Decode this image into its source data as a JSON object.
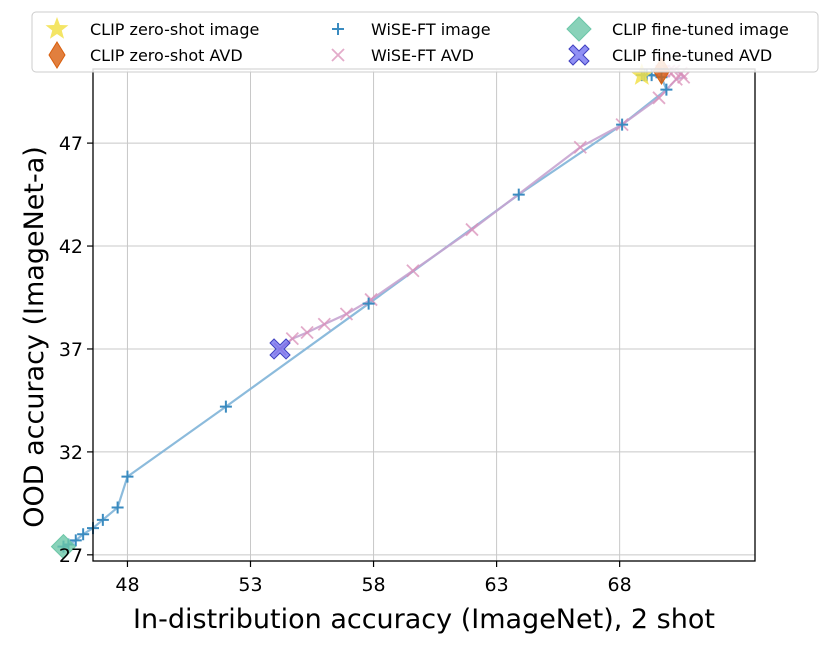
{
  "chart_data": {
    "type": "scatter",
    "xlabel": "In-distribution accuracy (ImageNet), 2 shot",
    "ylabel": "OOD accuracy (ImageNet-a)",
    "xlim": [
      46.6,
      73.5
    ],
    "ylim": [
      26.7,
      50.6
    ],
    "xticks": [
      48,
      53,
      58,
      63,
      68
    ],
    "yticks": [
      27,
      32,
      37,
      42,
      47
    ],
    "grid": true,
    "legend_position": "top",
    "series": [
      {
        "name": "CLIP zero-shot image",
        "marker": "star",
        "color": "#f2e14a",
        "points": [
          [
            68.9,
            50.3
          ]
        ]
      },
      {
        "name": "CLIP zero-shot AVD",
        "marker": "diamond",
        "color": "#d95f0e",
        "points": [
          [
            69.7,
            50.5
          ]
        ]
      },
      {
        "name": "WiSE-FT image",
        "marker": "plus",
        "color": "#3a8bc0",
        "line_color": "#7fb4d8",
        "points": [
          [
            45.4,
            27.4
          ],
          [
            45.6,
            27.5
          ],
          [
            45.9,
            27.7
          ],
          [
            46.2,
            28.0
          ],
          [
            46.6,
            28.3
          ],
          [
            47.0,
            28.7
          ],
          [
            47.6,
            29.3
          ],
          [
            48.0,
            30.8
          ],
          [
            52.0,
            34.2
          ],
          [
            57.8,
            39.2
          ],
          [
            63.9,
            44.5
          ],
          [
            68.1,
            47.9
          ],
          [
            69.9,
            49.6
          ],
          [
            69.7,
            50.2
          ],
          [
            69.3,
            50.3
          ],
          [
            69.1,
            50.3
          ],
          [
            69.0,
            50.3
          ],
          [
            68.9,
            50.3
          ]
        ]
      },
      {
        "name": "WiSE-FT AVD",
        "marker": "x",
        "color": "#d98fb8",
        "line_color": "#c7a4d0",
        "points": [
          [
            54.2,
            37.0
          ],
          [
            54.7,
            37.5
          ],
          [
            55.3,
            37.8
          ],
          [
            56.0,
            38.2
          ],
          [
            56.9,
            38.7
          ],
          [
            57.9,
            39.4
          ],
          [
            59.6,
            40.8
          ],
          [
            62.0,
            42.8
          ],
          [
            66.4,
            46.8
          ],
          [
            68.1,
            47.9
          ],
          [
            69.6,
            49.2
          ],
          [
            70.3,
            50.1
          ],
          [
            70.6,
            50.2
          ],
          [
            70.5,
            50.4
          ],
          [
            70.2,
            50.5
          ],
          [
            70.0,
            50.5
          ],
          [
            69.8,
            50.5
          ],
          [
            69.7,
            50.5
          ]
        ]
      },
      {
        "name": "CLIP fine-tuned image",
        "marker": "diamond",
        "color": "#6cc7a8",
        "points": [
          [
            45.4,
            27.4
          ]
        ]
      },
      {
        "name": "CLIP fine-tuned AVD",
        "marker": "x-filled",
        "color": "#6b6bf0",
        "points": [
          [
            54.2,
            37.0
          ]
        ]
      }
    ]
  }
}
